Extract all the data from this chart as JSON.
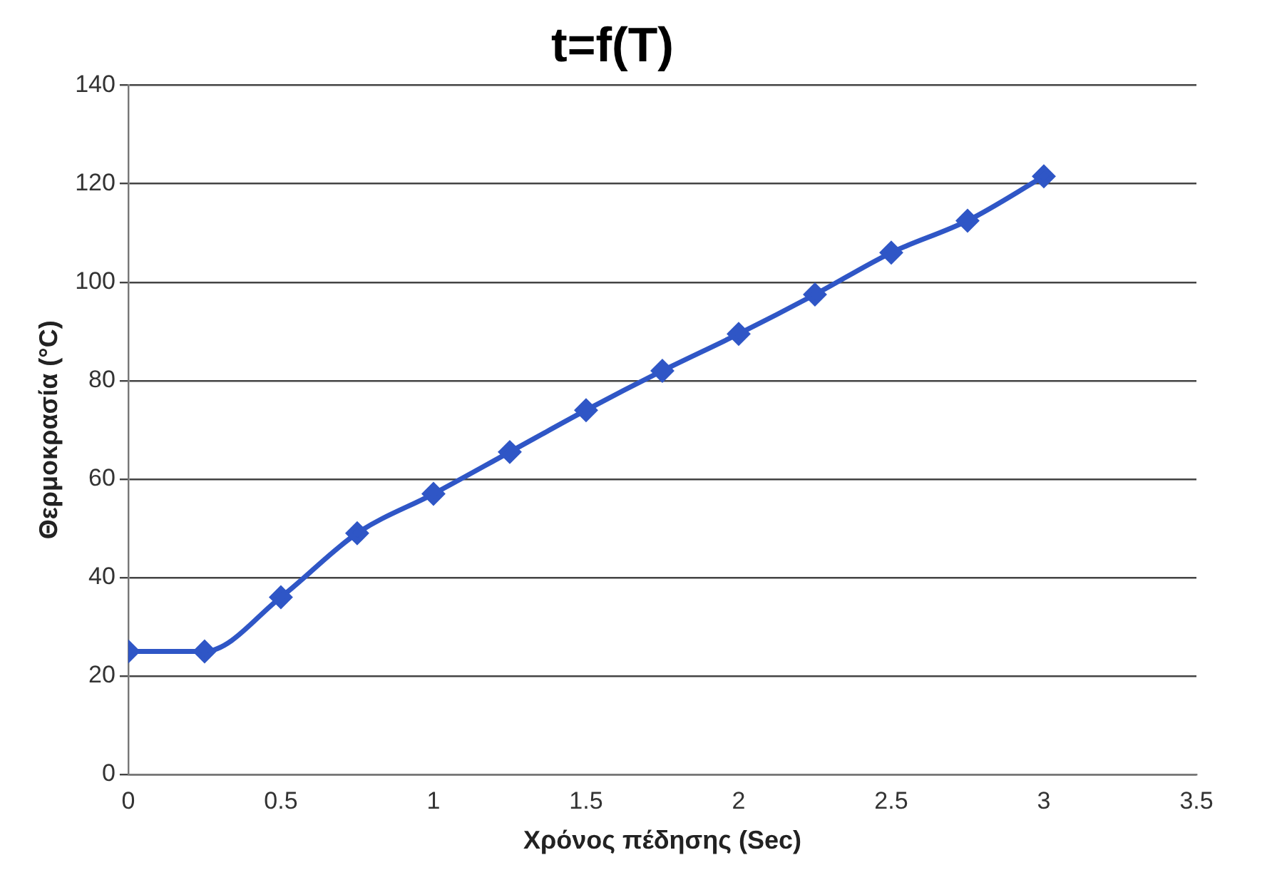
{
  "chart_data": {
    "type": "line",
    "title": "t=f(T)",
    "xlabel": "Χρόνος πέδησης (Sec)",
    "ylabel": "Θερμοκρασία (°C)",
    "x": [
      0,
      0.25,
      0.5,
      0.75,
      1,
      1.25,
      1.5,
      1.75,
      2,
      2.25,
      2.5,
      2.75,
      3
    ],
    "series": [
      {
        "color": "#2f56c6",
        "values": [
          25,
          25,
          36,
          49,
          57,
          65.5,
          74,
          82,
          89.5,
          97.5,
          106,
          112.5,
          121.5
        ]
      }
    ],
    "xlim": [
      0,
      3.5
    ],
    "xticks": [
      0,
      0.5,
      1,
      1.5,
      2,
      2.5,
      3,
      3.5
    ],
    "ylim": [
      0,
      140
    ],
    "yticks": [
      0,
      20,
      40,
      60,
      80,
      100,
      120,
      140
    ],
    "grid": "y",
    "legend": false,
    "marker": "diamond",
    "line_style": "solid"
  }
}
